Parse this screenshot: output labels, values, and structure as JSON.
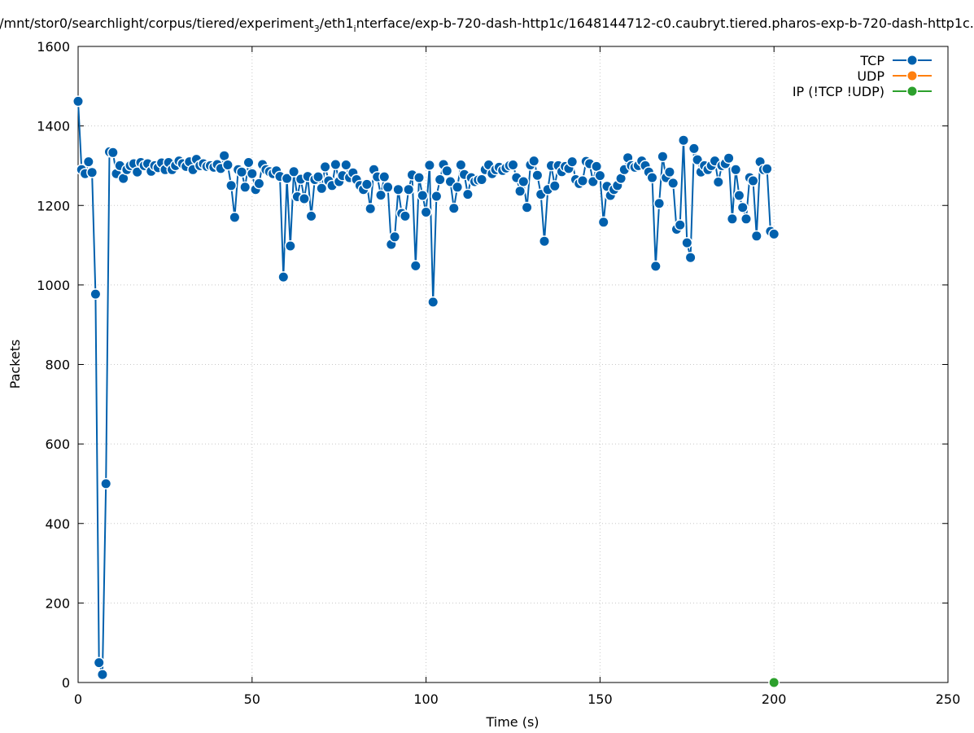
{
  "chart_data": {
    "type": "line",
    "title": "/mnt/stor0/searchlight/corpus/tiered/experiment",
    "title_sub": "3",
    "title_mid": "/eth1",
    "title_sub2": "i",
    "title_rest": "nterface/exp-b-720-dash-http1c/1648144712-c0.caubryt.tiered.pharos-exp-b-720-dash-http1c.",
    "xlabel": "Time (s)",
    "ylabel": "Packets",
    "xlim": [
      0,
      250
    ],
    "ylim": [
      0,
      1600
    ],
    "x_ticks": [
      0,
      50,
      100,
      150,
      200,
      250
    ],
    "y_ticks": [
      0,
      200,
      400,
      600,
      800,
      1000,
      1200,
      1400,
      1600
    ],
    "grid": true,
    "legend_position": "top-right",
    "series": [
      {
        "name": "TCP",
        "color": "#0060ad",
        "points": [
          [
            0,
            1462
          ],
          [
            1,
            1290
          ],
          [
            2,
            1280
          ],
          [
            3,
            1310
          ],
          [
            4,
            1283
          ],
          [
            5,
            977
          ],
          [
            6,
            50
          ],
          [
            7,
            20
          ],
          [
            8,
            500
          ],
          [
            9,
            1335
          ],
          [
            10,
            1333
          ],
          [
            11,
            1280
          ],
          [
            12,
            1300
          ],
          [
            13,
            1268
          ],
          [
            14,
            1290
          ],
          [
            15,
            1300
          ],
          [
            16,
            1305
          ],
          [
            17,
            1284
          ],
          [
            18,
            1308
          ],
          [
            19,
            1300
          ],
          [
            20,
            1305
          ],
          [
            21,
            1286
          ],
          [
            22,
            1300
          ],
          [
            23,
            1295
          ],
          [
            24,
            1307
          ],
          [
            25,
            1290
          ],
          [
            26,
            1308
          ],
          [
            27,
            1290
          ],
          [
            28,
            1300
          ],
          [
            29,
            1312
          ],
          [
            30,
            1305
          ],
          [
            31,
            1298
          ],
          [
            32,
            1310
          ],
          [
            33,
            1290
          ],
          [
            34,
            1316
          ],
          [
            35,
            1300
          ],
          [
            36,
            1305
          ],
          [
            37,
            1298
          ],
          [
            38,
            1300
          ],
          [
            39,
            1296
          ],
          [
            40,
            1303
          ],
          [
            41,
            1293
          ],
          [
            42,
            1325
          ],
          [
            43,
            1302
          ],
          [
            44,
            1250
          ],
          [
            45,
            1170
          ],
          [
            46,
            1290
          ],
          [
            47,
            1284
          ],
          [
            48,
            1246
          ],
          [
            49,
            1308
          ],
          [
            50,
            1280
          ],
          [
            51,
            1240
          ],
          [
            52,
            1255
          ],
          [
            53,
            1303
          ],
          [
            54,
            1290
          ],
          [
            55,
            1285
          ],
          [
            56,
            1280
          ],
          [
            57,
            1287
          ],
          [
            58,
            1273
          ],
          [
            59,
            1020
          ],
          [
            60,
            1268
          ],
          [
            61,
            1098
          ],
          [
            62,
            1285
          ],
          [
            63,
            1222
          ],
          [
            64,
            1266
          ],
          [
            65,
            1217
          ],
          [
            66,
            1273
          ],
          [
            67,
            1173
          ],
          [
            68,
            1265
          ],
          [
            69,
            1272
          ],
          [
            70,
            1243
          ],
          [
            71,
            1297
          ],
          [
            72,
            1262
          ],
          [
            73,
            1250
          ],
          [
            74,
            1303
          ],
          [
            75,
            1260
          ],
          [
            76,
            1275
          ],
          [
            77,
            1302
          ],
          [
            78,
            1270
          ],
          [
            79,
            1282
          ],
          [
            80,
            1265
          ],
          [
            81,
            1250
          ],
          [
            82,
            1240
          ],
          [
            83,
            1253
          ],
          [
            84,
            1192
          ],
          [
            85,
            1290
          ],
          [
            86,
            1272
          ],
          [
            87,
            1226
          ],
          [
            88,
            1272
          ],
          [
            89,
            1246
          ],
          [
            90,
            1102
          ],
          [
            91,
            1121
          ],
          [
            92,
            1240
          ],
          [
            93,
            1180
          ],
          [
            94,
            1173
          ],
          [
            95,
            1240
          ],
          [
            96,
            1277
          ],
          [
            97,
            1048
          ],
          [
            98,
            1270
          ],
          [
            99,
            1225
          ],
          [
            100,
            1183
          ],
          [
            101,
            1301
          ],
          [
            102,
            957
          ],
          [
            103,
            1223
          ],
          [
            104,
            1265
          ],
          [
            105,
            1303
          ],
          [
            106,
            1287
          ],
          [
            107,
            1260
          ],
          [
            108,
            1193
          ],
          [
            109,
            1246
          ],
          [
            110,
            1302
          ],
          [
            111,
            1278
          ],
          [
            112,
            1228
          ],
          [
            113,
            1270
          ],
          [
            114,
            1260
          ],
          [
            115,
            1264
          ],
          [
            116,
            1265
          ],
          [
            117,
            1290
          ],
          [
            118,
            1302
          ],
          [
            119,
            1280
          ]
        ],
        "points_b": [
          [
            120,
            1290
          ],
          [
            121,
            1296
          ],
          [
            122,
            1288
          ],
          [
            123,
            1294
          ],
          [
            124,
            1300
          ],
          [
            125,
            1302
          ],
          [
            126,
            1270
          ],
          [
            127,
            1236
          ],
          [
            128,
            1260
          ],
          [
            129,
            1195
          ],
          [
            130,
            1302
          ],
          [
            131,
            1312
          ],
          [
            132,
            1276
          ],
          [
            133,
            1228
          ],
          [
            134,
            1110
          ],
          [
            135,
            1240
          ],
          [
            136,
            1300
          ],
          [
            137,
            1249
          ],
          [
            138,
            1300
          ],
          [
            139,
            1285
          ],
          [
            140,
            1298
          ],
          [
            141,
            1293
          ],
          [
            142,
            1310
          ],
          [
            143,
            1265
          ],
          [
            144,
            1255
          ],
          [
            145,
            1262
          ],
          [
            146,
            1311
          ],
          [
            147,
            1305
          ],
          [
            148,
            1260
          ],
          [
            149,
            1298
          ],
          [
            150,
            1275
          ],
          [
            151,
            1158
          ],
          [
            152,
            1248
          ],
          [
            153,
            1225
          ],
          [
            154,
            1240
          ],
          [
            155,
            1250
          ],
          [
            156,
            1268
          ],
          [
            157,
            1290
          ],
          [
            158,
            1320
          ],
          [
            159,
            1300
          ],
          [
            160,
            1296
          ],
          [
            161,
            1300
          ],
          [
            162,
            1312
          ],
          [
            163,
            1300
          ],
          [
            164,
            1284
          ],
          [
            165,
            1270
          ],
          [
            166,
            1047
          ],
          [
            167,
            1205
          ],
          [
            168,
            1323
          ],
          [
            169,
            1270
          ],
          [
            170,
            1284
          ],
          [
            171,
            1256
          ],
          [
            172,
            1140
          ],
          [
            173,
            1151
          ],
          [
            174,
            1364
          ],
          [
            175,
            1106
          ],
          [
            176,
            1069
          ],
          [
            177,
            1343
          ],
          [
            178,
            1315
          ],
          [
            179,
            1284
          ],
          [
            180,
            1300
          ],
          [
            181,
            1290
          ],
          [
            182,
            1300
          ],
          [
            183,
            1312
          ],
          [
            184,
            1259
          ],
          [
            185,
            1300
          ],
          [
            186,
            1305
          ],
          [
            187,
            1319
          ],
          [
            188,
            1166
          ],
          [
            189,
            1290
          ],
          [
            190,
            1225
          ],
          [
            191,
            1195
          ],
          [
            192,
            1166
          ],
          [
            193,
            1270
          ],
          [
            194,
            1262
          ],
          [
            195,
            1123
          ],
          [
            196,
            1310
          ],
          [
            197,
            1290
          ],
          [
            198,
            1292
          ],
          [
            199,
            1135
          ],
          [
            200,
            1128
          ]
        ]
      },
      {
        "name": "UDP",
        "color": "#ff7f0e",
        "points": []
      },
      {
        "name": "IP (!TCP  !UDP)",
        "color": "#2ca02c",
        "points": [
          [
            200,
            0
          ]
        ]
      }
    ]
  }
}
